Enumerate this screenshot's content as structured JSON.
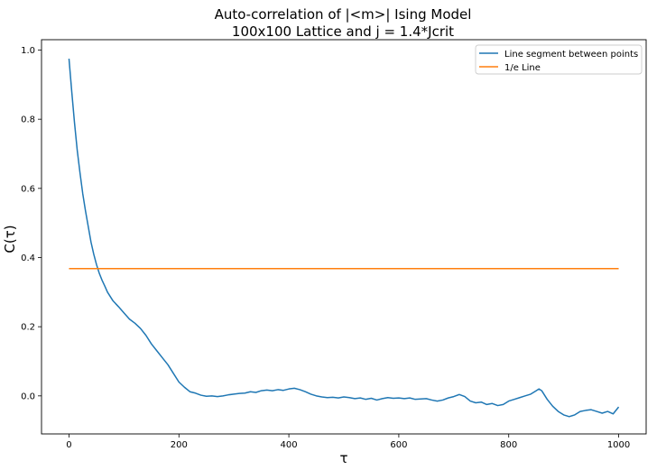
{
  "chart_data": {
    "type": "line",
    "title_line1": "Auto-correlation of |<m>| Ising Model",
    "title_line2": "100x100 Lattice and j = 1.4*Jcrit",
    "xlabel": "τ",
    "ylabel": "C(τ)",
    "xlim": [
      -50,
      1050
    ],
    "ylim": [
      -0.11,
      1.03
    ],
    "xticks": [
      0,
      200,
      400,
      600,
      800,
      1000
    ],
    "xtick_labels": [
      "0",
      "200",
      "400",
      "600",
      "800",
      "1000"
    ],
    "yticks": [
      0.0,
      0.2,
      0.4,
      0.6,
      0.8,
      1.0
    ],
    "ytick_labels": [
      "0.0",
      "0.2",
      "0.4",
      "0.6",
      "0.8",
      "1.0"
    ],
    "grid": false,
    "legend_position": "top-right",
    "series": [
      {
        "name": "Line segment between points",
        "color": "#1f77b4",
        "x": [
          0,
          5,
          10,
          15,
          20,
          25,
          30,
          35,
          40,
          45,
          50,
          55,
          60,
          65,
          70,
          80,
          90,
          100,
          110,
          120,
          130,
          140,
          150,
          160,
          170,
          180,
          190,
          200,
          210,
          220,
          230,
          240,
          250,
          260,
          270,
          280,
          290,
          300,
          310,
          320,
          330,
          340,
          350,
          360,
          370,
          380,
          390,
          400,
          410,
          420,
          430,
          440,
          450,
          460,
          470,
          480,
          490,
          500,
          510,
          520,
          530,
          540,
          550,
          560,
          570,
          580,
          590,
          600,
          610,
          620,
          630,
          640,
          650,
          660,
          670,
          680,
          690,
          700,
          710,
          720,
          730,
          740,
          750,
          760,
          770,
          780,
          790,
          800,
          810,
          820,
          830,
          840,
          850,
          855,
          860,
          870,
          880,
          890,
          900,
          910,
          920,
          930,
          940,
          950,
          960,
          970,
          980,
          990,
          1000
        ],
        "y": [
          0.975,
          0.88,
          0.79,
          0.71,
          0.645,
          0.585,
          0.535,
          0.49,
          0.445,
          0.41,
          0.38,
          0.355,
          0.335,
          0.318,
          0.3,
          0.275,
          0.258,
          0.24,
          0.222,
          0.21,
          0.195,
          0.175,
          0.15,
          0.13,
          0.11,
          0.09,
          0.065,
          0.04,
          0.025,
          0.012,
          0.008,
          0.002,
          -0.001,
          0.0,
          -0.002,
          0.0,
          0.003,
          0.005,
          0.007,
          0.008,
          0.012,
          0.01,
          0.015,
          0.017,
          0.015,
          0.018,
          0.016,
          0.02,
          0.022,
          0.018,
          0.012,
          0.005,
          0.0,
          -0.003,
          -0.005,
          -0.004,
          -0.006,
          -0.003,
          -0.005,
          -0.008,
          -0.006,
          -0.01,
          -0.007,
          -0.012,
          -0.008,
          -0.005,
          -0.007,
          -0.006,
          -0.008,
          -0.006,
          -0.01,
          -0.009,
          -0.008,
          -0.012,
          -0.015,
          -0.012,
          -0.006,
          -0.002,
          0.004,
          -0.002,
          -0.015,
          -0.02,
          -0.018,
          -0.025,
          -0.022,
          -0.028,
          -0.025,
          -0.015,
          -0.01,
          -0.005,
          0.0,
          0.005,
          0.015,
          0.02,
          0.015,
          -0.01,
          -0.03,
          -0.045,
          -0.055,
          -0.06,
          -0.055,
          -0.045,
          -0.042,
          -0.04,
          -0.045,
          -0.05,
          -0.045,
          -0.052,
          -0.032
        ]
      },
      {
        "name": "1/e Line",
        "color": "#ff7f0e",
        "x": [
          0,
          1000
        ],
        "y": [
          0.3679,
          0.3679
        ]
      }
    ]
  }
}
